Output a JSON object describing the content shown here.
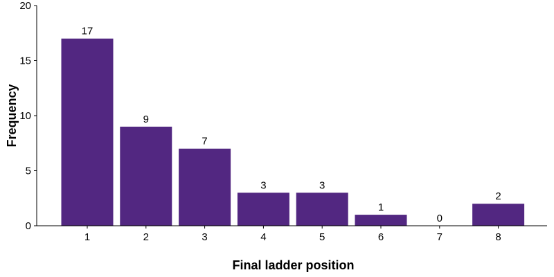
{
  "chart_data": {
    "type": "bar",
    "title": "",
    "xlabel": "Final ladder position",
    "ylabel": "Frequency",
    "categories": [
      "1",
      "2",
      "3",
      "4",
      "5",
      "6",
      "7",
      "8"
    ],
    "values": [
      17,
      9,
      7,
      3,
      3,
      1,
      0,
      2
    ],
    "data_labels": [
      "17",
      "9",
      "7",
      "3",
      "3",
      "1",
      "0",
      "2"
    ],
    "ylim": [
      0,
      20
    ],
    "yticks": [
      "0",
      "5",
      "10",
      "15",
      "20"
    ],
    "grid": false,
    "legend": "none",
    "bar_color": "#522781"
  }
}
